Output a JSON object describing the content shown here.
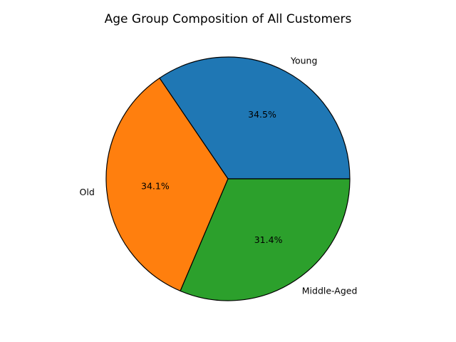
{
  "chart_data": {
    "type": "pie",
    "title": "Age Group Composition of All Customers",
    "slices": [
      {
        "label": "Young",
        "value": 34.5,
        "pct_label": "34.5%",
        "color": "#1f77b4"
      },
      {
        "label": "Old",
        "value": 34.1,
        "pct_label": "34.1%",
        "color": "#ff7f0e"
      },
      {
        "label": "Middle-Aged",
        "value": 31.4,
        "pct_label": "31.4%",
        "color": "#2ca02c"
      }
    ],
    "start_angle_deg": 0,
    "direction": "counterclockwise",
    "edge_color": "#000000",
    "legend": "none"
  }
}
